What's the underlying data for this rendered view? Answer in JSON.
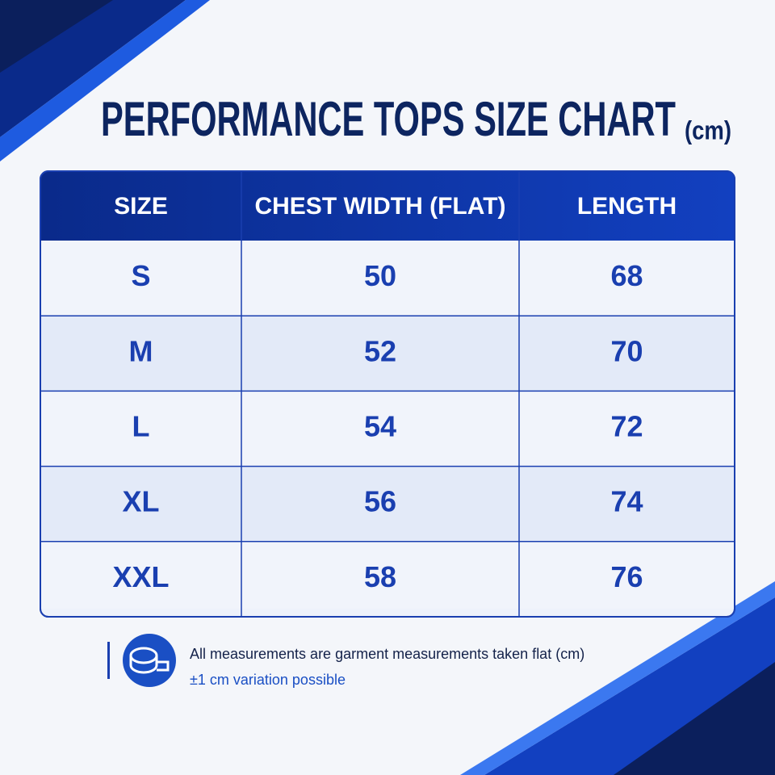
{
  "header": {
    "title": "PERFORMANCE TOPS SIZE CHART",
    "unit": "(cm)"
  },
  "table": {
    "columns": [
      "SIZE",
      "CHEST WIDTH (FLAT)",
      "LENGTH"
    ],
    "rows": [
      [
        "S",
        50,
        68
      ],
      [
        "M",
        52,
        70
      ],
      [
        "L",
        54,
        72
      ],
      [
        "XL",
        56,
        74
      ],
      [
        "XXL",
        58,
        76
      ]
    ]
  },
  "notes": {
    "main": "All measurements are garment measurements taken flat (cm)",
    "variation": "±1 cm variation possible"
  }
}
